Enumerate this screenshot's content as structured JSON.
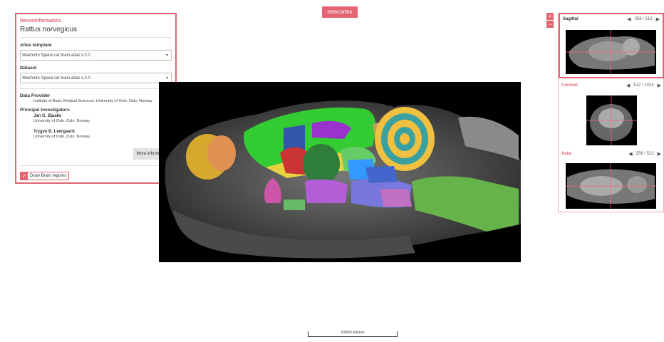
{
  "panel": {
    "category": "Neuroinformatics",
    "species": "Rattus norvegicus",
    "atlas_label": "Atlas template",
    "atlas_value": "Waxholm Space rat brain atlas v.2.0",
    "dataset_label": "Dataset",
    "dataset_value": "Waxholm Space rat brain atlas v.2.0",
    "provider_label": "Data Provider",
    "provider_value": "Institute of Basic Medical Sciences, University of Oslo, Oslo, Norway",
    "investigators_label": "Principal Investigators",
    "investigators": [
      {
        "name": "Jan G. Bjaalie",
        "affiliation": "University of Oslo, Oslo, Norway"
      },
      {
        "name": "Trygve B. Leergaard",
        "affiliation": "University of Oslo, Oslo, Norway"
      }
    ],
    "more_button": "More information",
    "draw_regions_label": "Draw Brain regions",
    "draw_regions_checked": true
  },
  "badge": "neocortex",
  "zoom": {
    "plus": "+",
    "minus": "−"
  },
  "views": {
    "sagittal": {
      "title": "Sagittal",
      "index": "256 / 512"
    },
    "coronal": {
      "title": "Coronal",
      "index": "512 / 1024"
    },
    "axial": {
      "title": "Axial",
      "index": "256 / 512"
    }
  },
  "scale_bar": "10000 micron",
  "colors": {
    "accent": "#e46472",
    "crosshair": "#ff6677"
  },
  "icons": {
    "prev": "triangle-left-icon",
    "next": "triangle-right-icon",
    "check": "check-icon",
    "caret": "caret-down-icon"
  }
}
